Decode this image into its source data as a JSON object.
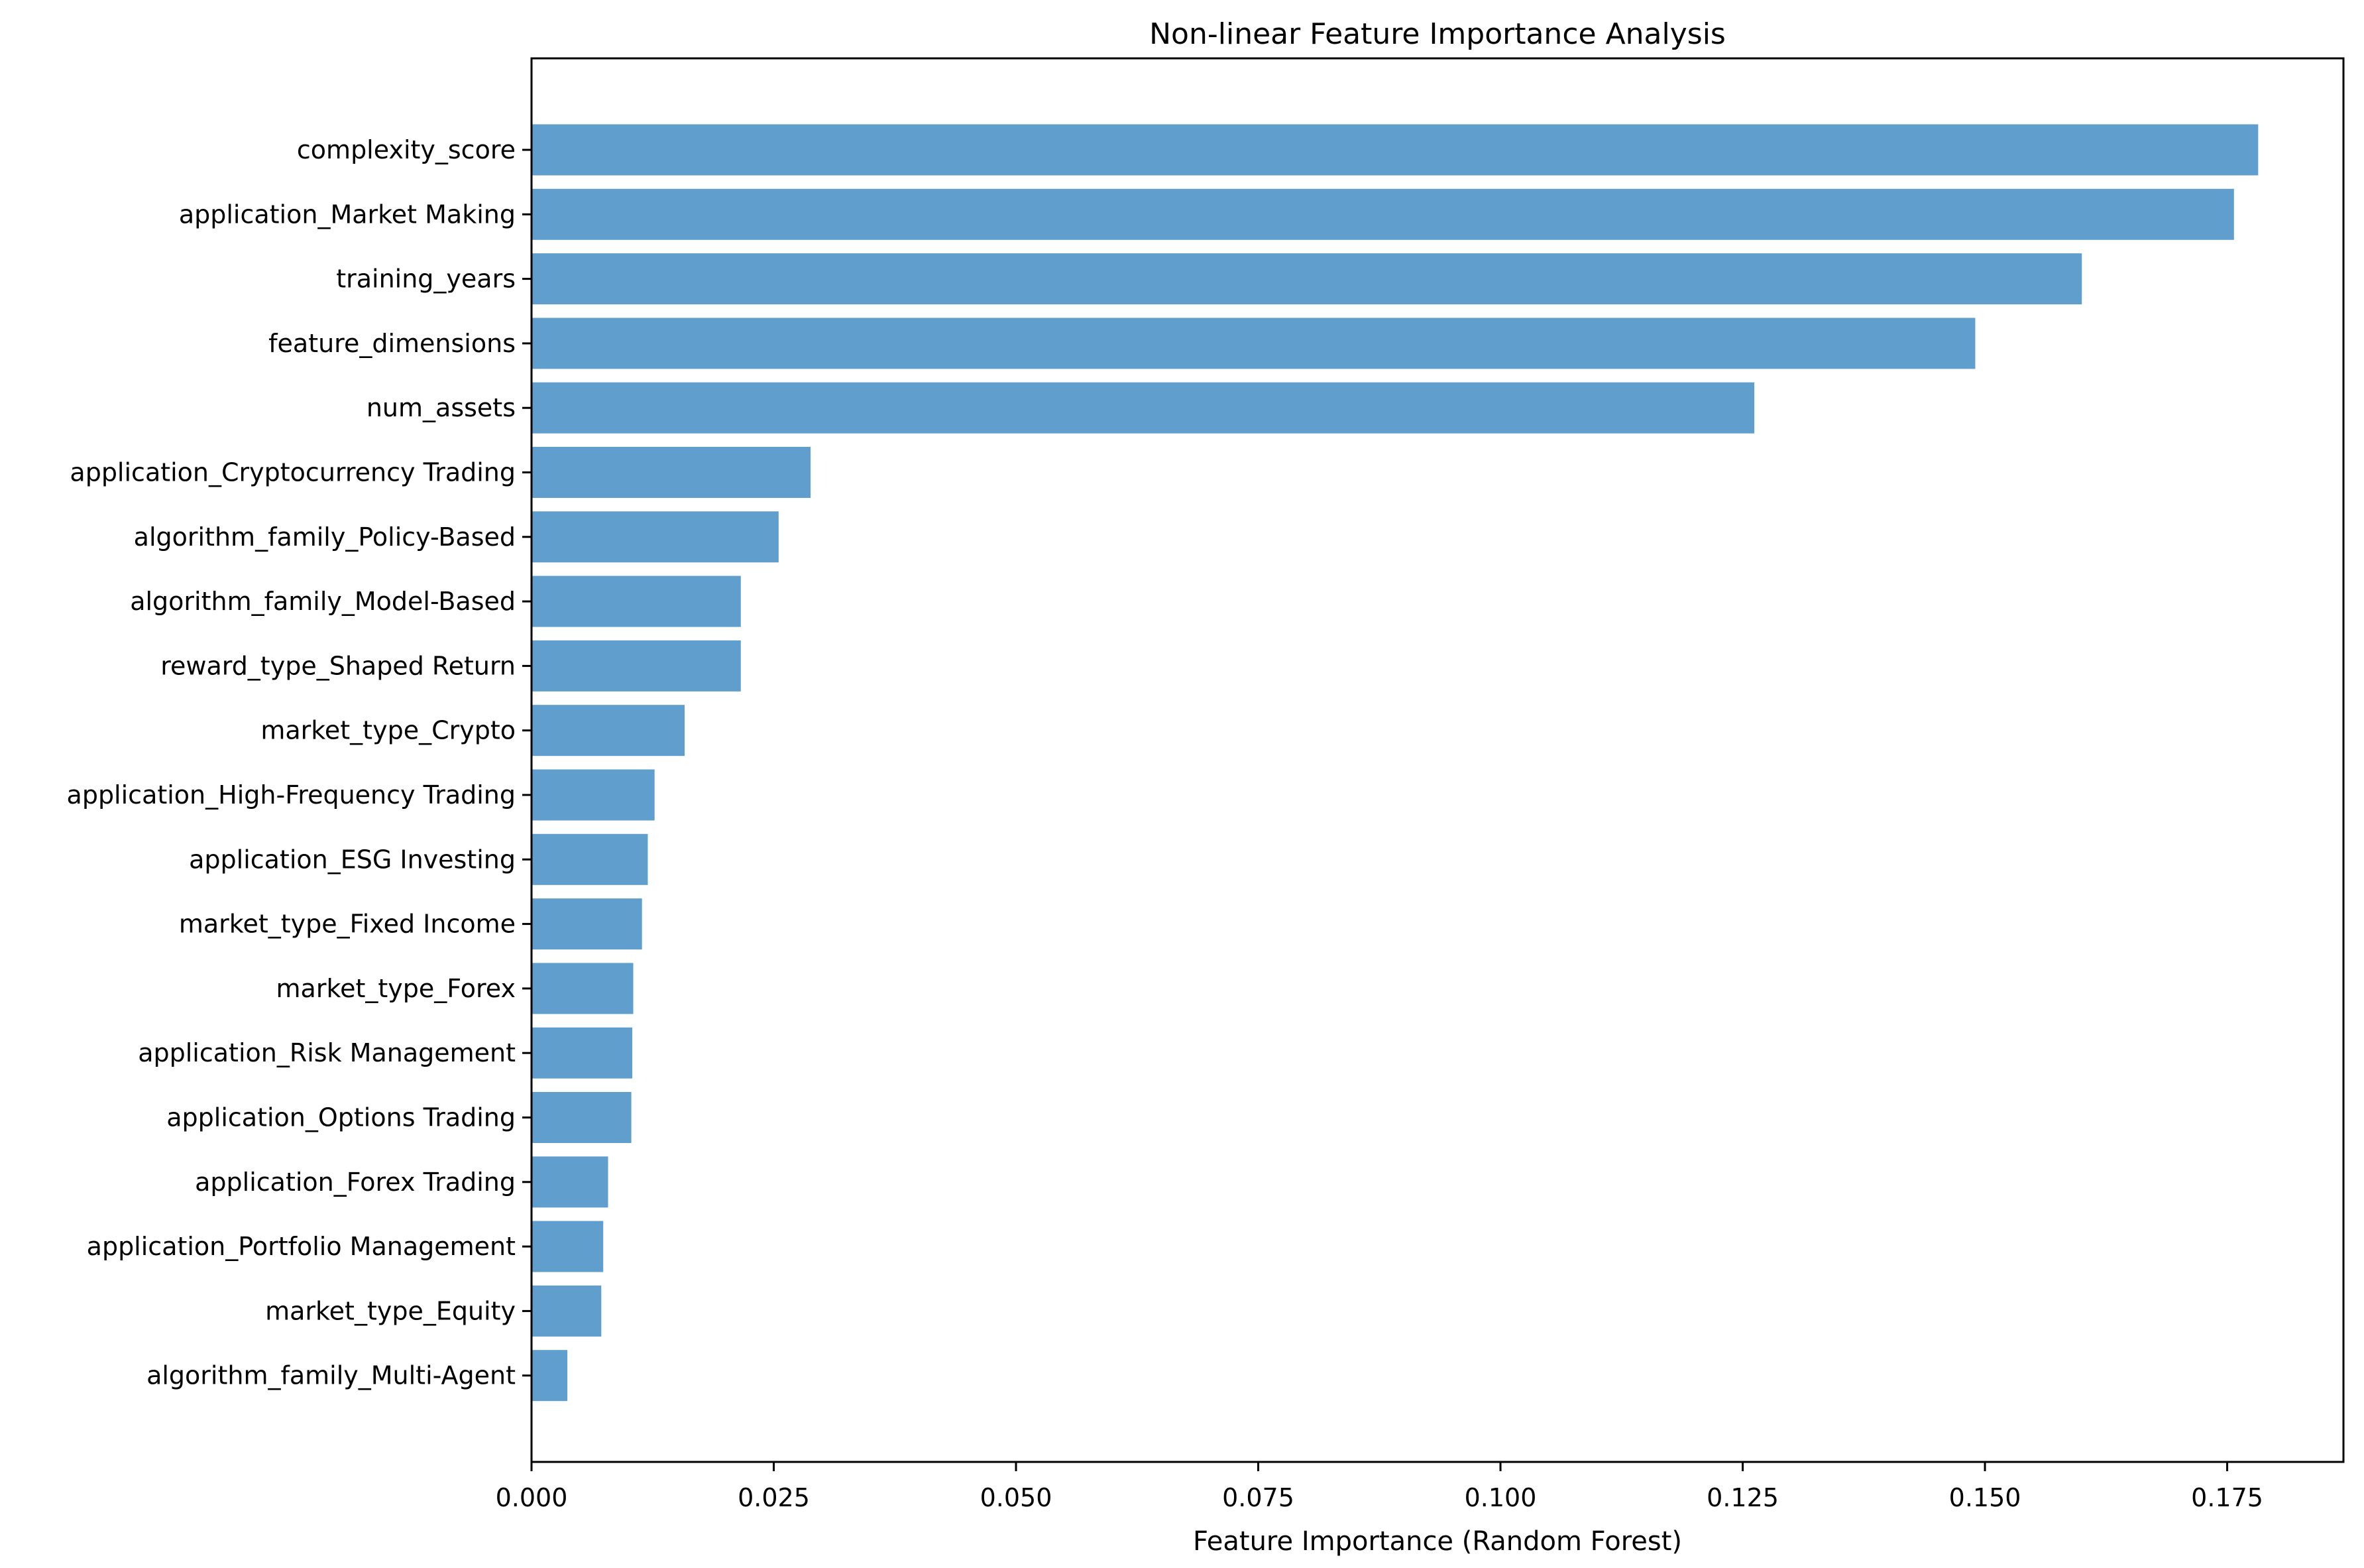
{
  "chart_data": {
    "type": "bar",
    "orientation": "horizontal",
    "title": "Non-linear Feature Importance Analysis",
    "xlabel": "Feature Importance (Random Forest)",
    "ylabel": "",
    "categories": [
      "complexity_score",
      "application_Market Making",
      "training_years",
      "feature_dimensions",
      "num_assets",
      "application_Cryptocurrency Trading",
      "algorithm_family_Policy-Based",
      "algorithm_family_Model-Based",
      "reward_type_Shaped Return",
      "market_type_Crypto",
      "application_High-Frequency Trading",
      "application_ESG Investing",
      "market_type_Fixed Income",
      "market_type_Forex",
      "application_Risk Management",
      "application_Options Trading",
      "application_Forex Trading",
      "application_Portfolio Management",
      "market_type_Equity",
      "algorithm_family_Multi-Agent"
    ],
    "values": [
      0.1782,
      0.1757,
      0.16,
      0.149,
      0.1262,
      0.0288,
      0.0255,
      0.0216,
      0.0216,
      0.0158,
      0.0127,
      0.012,
      0.0114,
      0.0105,
      0.0104,
      0.0103,
      0.0079,
      0.0074,
      0.0072,
      0.0037
    ],
    "xlim": [
      0,
      0.187
    ],
    "xticks": [
      0.0,
      0.025,
      0.05,
      0.075,
      0.1,
      0.125,
      0.15,
      0.175
    ],
    "xtick_decimals": 3,
    "grid": false,
    "legend": "none",
    "bar_color": "#5F9ECD",
    "frame_color": "#000000",
    "background_color": "#ffffff"
  }
}
